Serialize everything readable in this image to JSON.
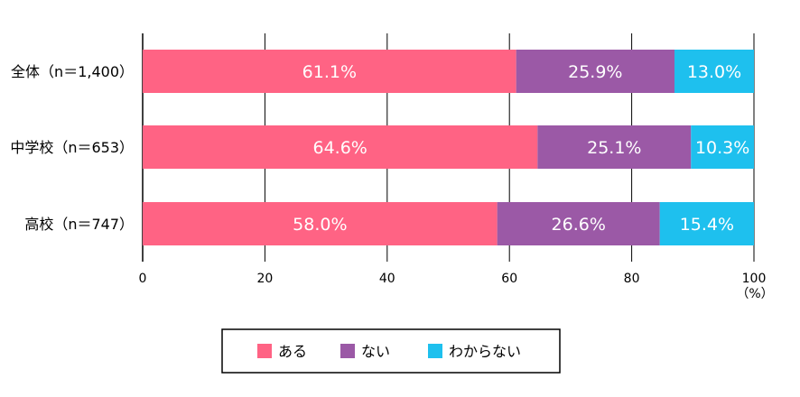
{
  "chart_data": {
    "type": "bar",
    "orientation": "horizontal",
    "stacked": true,
    "categories": [
      "全体（n＝1,400）",
      "中学校（n＝653）",
      "高校（n＝747）"
    ],
    "series": [
      {
        "name": "ある",
        "values": [
          61.1,
          64.6,
          58.0
        ],
        "color": "#FF6384"
      },
      {
        "name": "ない",
        "values": [
          25.9,
          25.1,
          26.6
        ],
        "color": "#9B59A6"
      },
      {
        "name": "わからない",
        "values": [
          13.0,
          10.3,
          15.4
        ],
        "color": "#1EC0EE"
      }
    ],
    "value_labels": [
      [
        "61.1%",
        "25.9%",
        "13.0%"
      ],
      [
        "64.6%",
        "25.1%",
        "10.3%"
      ],
      [
        "58.0%",
        "26.6%",
        "15.4%"
      ]
    ],
    "xlim": [
      0,
      100
    ],
    "xticks": [
      0,
      20,
      40,
      60,
      80,
      100
    ],
    "tick_labels": [
      "0",
      "20",
      "40",
      "60",
      "80",
      "100"
    ],
    "unit_label": "（%）",
    "grid": true,
    "legend_position": "bottom"
  }
}
